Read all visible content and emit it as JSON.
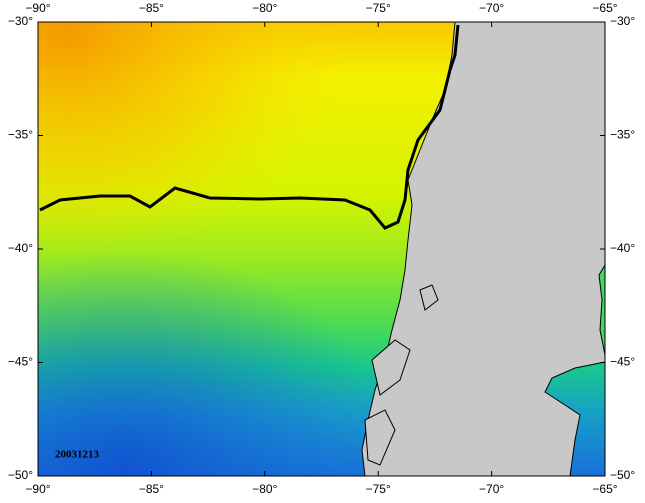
{
  "map": {
    "xlim": [
      -90,
      -65
    ],
    "ylim": [
      -50,
      -30
    ],
    "xticks": [
      {
        "value": -90,
        "label": "−90°"
      },
      {
        "value": -85,
        "label": "−85°"
      },
      {
        "value": -80,
        "label": "−80°"
      },
      {
        "value": -75,
        "label": "−75°"
      },
      {
        "value": -70,
        "label": "−70°"
      },
      {
        "value": -65,
        "label": "−65°"
      }
    ],
    "yticks": [
      {
        "value": -30,
        "label": "−30°"
      },
      {
        "value": -35,
        "label": "−35°"
      },
      {
        "value": -40,
        "label": "−40°"
      },
      {
        "value": -45,
        "label": "−45°"
      },
      {
        "value": -50,
        "label": "−50°"
      }
    ],
    "date_label": "20031213"
  }
}
